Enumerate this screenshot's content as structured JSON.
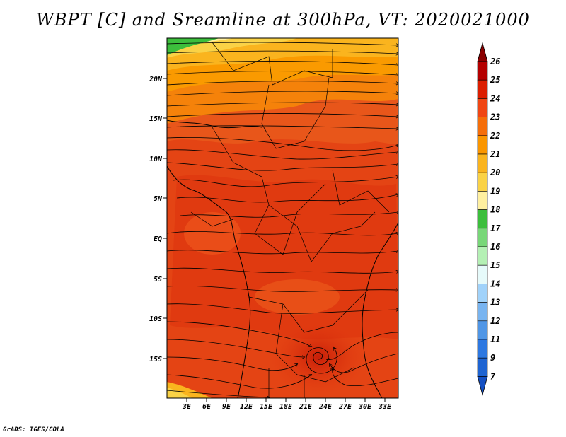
{
  "title": "WBPT [C] and Sreamline at 300hPa, VT: 2020021000",
  "credit": "GrADS: IGES/COLA",
  "map": {
    "lat_labels": [
      "20N",
      "15N",
      "10N",
      "5N",
      "EQ",
      "5S",
      "10S",
      "15S"
    ],
    "lon_labels": [
      "3E",
      "6E",
      "9E",
      "12E",
      "15E",
      "18E",
      "21E",
      "24E",
      "27E",
      "30E",
      "33E"
    ],
    "field": "WBPT [C]",
    "level": "300hPa",
    "valid_time": "2020021000"
  },
  "colorbar": {
    "levels": [
      "26",
      "25",
      "24",
      "23",
      "22",
      "21",
      "20",
      "19",
      "18",
      "17",
      "16",
      "15",
      "14",
      "13",
      "12",
      "11",
      "9",
      "7"
    ],
    "colors": [
      "#8c0000",
      "#b40000",
      "#dc1e00",
      "#f04614",
      "#f56e0a",
      "#fa9600",
      "#fab41e",
      "#fad246",
      "#fff0a0",
      "#3cbe3c",
      "#78d778",
      "#b4f0b4",
      "#e6fafa",
      "#a0d2fa",
      "#78b4f0",
      "#5096e6",
      "#2d78e1",
      "#1e64d2",
      "#1450c3"
    ]
  },
  "legend_colors": {
    "ocean": "#e8561a",
    "land": "#e43c10",
    "warm_core": "#d22a0a"
  }
}
